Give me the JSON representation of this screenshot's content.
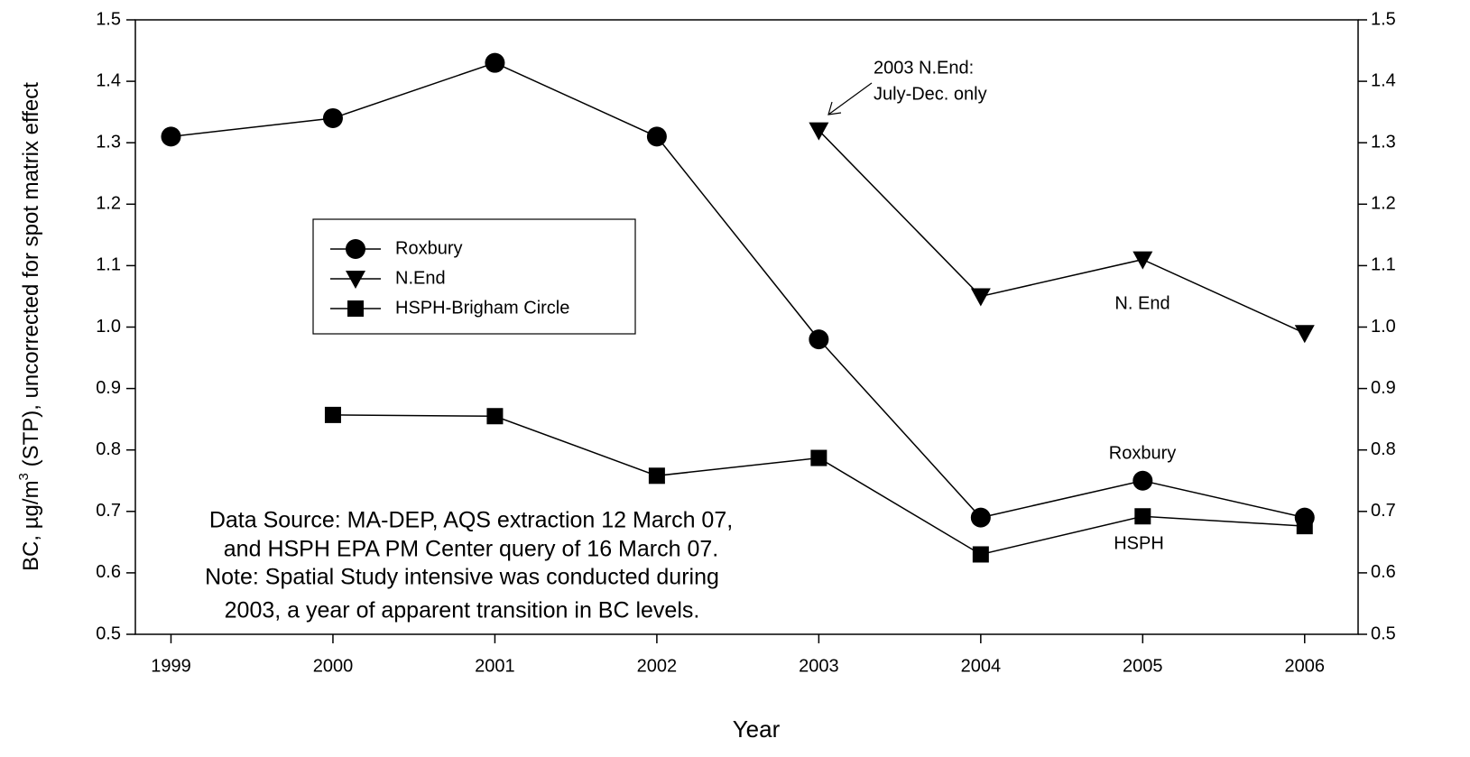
{
  "chart_data": {
    "type": "line",
    "xlabel": "Year",
    "ylabel": "BC, µg/m",
    "ylabel_sup": "3",
    "ylabel_rest": " (STP), uncorrected for spot matrix effect",
    "x": [
      1999,
      2000,
      2001,
      2002,
      2003,
      2004,
      2005,
      2006
    ],
    "series": [
      {
        "name": "Roxbury",
        "color": "#000000",
        "marker": "circle",
        "values": [
          1.31,
          1.34,
          1.43,
          1.31,
          0.98,
          0.69,
          0.75,
          0.69
        ]
      },
      {
        "name": "N.End",
        "color": "#000000",
        "marker": "triangle-down",
        "values": [
          null,
          null,
          null,
          null,
          1.32,
          1.05,
          1.11,
          0.99
        ]
      },
      {
        "name": "HSPH-Brigham Circle",
        "color": "#000000",
        "marker": "square",
        "values": [
          null,
          0.857,
          0.855,
          0.758,
          0.787,
          0.63,
          0.692,
          0.676
        ]
      }
    ],
    "xlim": [
      1998.78,
      2006.33
    ],
    "xticks": [
      1999,
      2000,
      2001,
      2002,
      2003,
      2004,
      2005,
      2006
    ],
    "ylim": [
      0.5,
      1.5
    ],
    "yticks": [
      0.5,
      0.6,
      0.7,
      0.8,
      0.9,
      {
        "value": 1,
        "label": "1.0"
      },
      1.1,
      1.2,
      1.3,
      1.4,
      1.5
    ],
    "y2lim": [
      0.5,
      1.5
    ],
    "y2ticks": [
      0.5,
      0.6,
      0.7,
      0.8,
      0.9,
      {
        "value": 1,
        "label": "1.0"
      },
      1.1,
      1.2,
      1.3,
      1.4,
      1.5
    ],
    "grid": false,
    "legend": "upper left",
    "annotations": [
      "2003 N.End:",
      "July-Dec. only",
      "N. End",
      "Roxbury",
      "HSPH",
      "Data Source: MA-DEP, AQS extraction 12 March 07,",
      "and HSPH EPA PM Center query of 16 March 07.",
      "Note: Spatial Study intensive was conducted during",
      "2003, a year of apparent transition in BC levels."
    ]
  }
}
